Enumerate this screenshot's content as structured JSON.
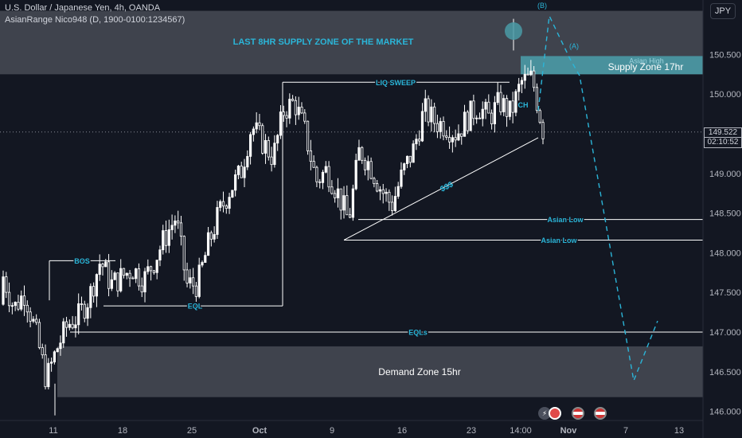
{
  "header": {
    "symbol_line": "U.S. Dollar / Japanese Yen, 4h, OANDA",
    "indicator_line": "AsianRange Nico948 (D, 1900-0100:1234567)"
  },
  "currency_button": "JPY",
  "last_price": {
    "value": "149.522",
    "countdown": "02:10:52"
  },
  "colors": {
    "background": "#131722",
    "candles": "#ffffff",
    "annotation": "#2bb5d8",
    "supply_zone": "#4a9aa6",
    "zone_gray": "#5d606b"
  },
  "chart_data": {
    "type": "candlestick",
    "symbol": "USDJPY",
    "timeframe": "4h",
    "y_axis": {
      "ticks": [
        "146.000",
        "146.500",
        "147.000",
        "147.500",
        "148.000",
        "148.500",
        "149.000",
        "149.500",
        "150.000",
        "150.500"
      ],
      "ylim": [
        145.95,
        151.05
      ]
    },
    "x_axis": {
      "ticks": [
        "11",
        "18",
        "25",
        "Oct",
        "9",
        "16",
        "23",
        "14:00",
        "Nov",
        "7",
        "13"
      ]
    },
    "closes_approx": [
      147.7,
      147.3,
      147.5,
      147.0,
      146.4,
      146.8,
      147.1,
      147.2,
      147.45,
      147.9,
      147.6,
      147.7,
      147.8,
      147.65,
      147.9,
      148.2,
      148.45,
      147.6,
      147.6,
      148.1,
      148.5,
      148.8,
      149.0,
      149.6,
      149.4,
      149.2,
      149.8,
      149.9,
      149.5,
      148.9,
      149.05,
      148.75,
      148.4,
      149.3,
      149.1,
      148.8,
      148.6,
      149.0,
      149.3,
      149.8,
      149.65,
      149.6,
      149.5,
      149.7,
      149.85,
      149.7,
      149.9,
      149.75,
      150.15,
      150.2,
      149.55
    ],
    "zones": [
      {
        "label": "LAST 8HR SUPPLY ZONE OF THE MARKET",
        "from": 150.25,
        "to": 151.05
      },
      {
        "label": "Supply Zone 17hr",
        "from": 150.25,
        "to": 150.48
      },
      {
        "label": "Demand Zone 15hr",
        "from": 146.18,
        "to": 146.82
      }
    ],
    "levels": [
      {
        "label": "LIQ SWEEP",
        "value": 150.15
      },
      {
        "label": "BOS",
        "value": 147.9
      },
      {
        "label": "EQL",
        "value": 147.33
      },
      {
        "label": "EQLs",
        "value": 147.0
      },
      {
        "label": "Asian Low",
        "value": 148.42
      },
      {
        "label": "Asian Low",
        "value": 148.16
      },
      {
        "label": "Asian High",
        "value": 150.42
      }
    ],
    "annotations": [
      "$$$",
      "CH",
      "(A)",
      "(B)"
    ],
    "projection": {
      "style": "dashed",
      "path": [
        150.0,
        150.95,
        150.4,
        150.48,
        146.35,
        147.15
      ]
    }
  }
}
